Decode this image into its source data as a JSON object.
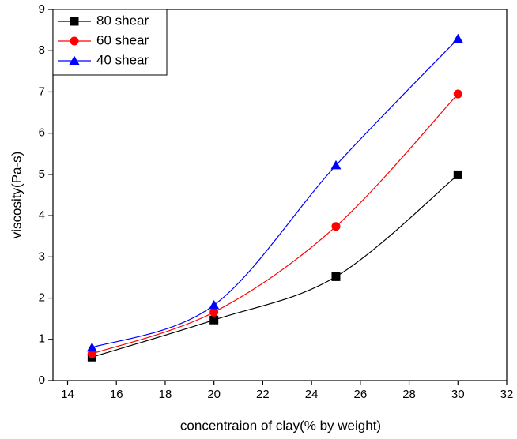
{
  "chart_data": {
    "type": "line",
    "x_label": "concentraion of clay(% by weight)",
    "y_label": "viscosity(Pa-s)",
    "x": [
      15,
      20,
      25,
      30
    ],
    "series": [
      {
        "name": "80 shear",
        "color": "#000000",
        "marker": "square",
        "values": [
          0.57,
          1.47,
          2.52,
          4.99
        ]
      },
      {
        "name": "60 shear",
        "color": "#ff0000",
        "marker": "circle",
        "values": [
          0.65,
          1.66,
          3.74,
          6.95
        ]
      },
      {
        "name": "40 shear",
        "color": "#0000ff",
        "marker": "triangle",
        "values": [
          0.8,
          1.83,
          5.22,
          8.29
        ]
      }
    ],
    "xlim": [
      13.4,
      32
    ],
    "xticks": [
      14,
      16,
      18,
      20,
      22,
      24,
      26,
      28,
      30,
      32
    ],
    "ylim": [
      0,
      9
    ],
    "yticks": [
      0,
      1,
      2,
      3,
      4,
      5,
      6,
      7,
      8,
      9
    ],
    "legend": "top-left",
    "grid": false
  }
}
